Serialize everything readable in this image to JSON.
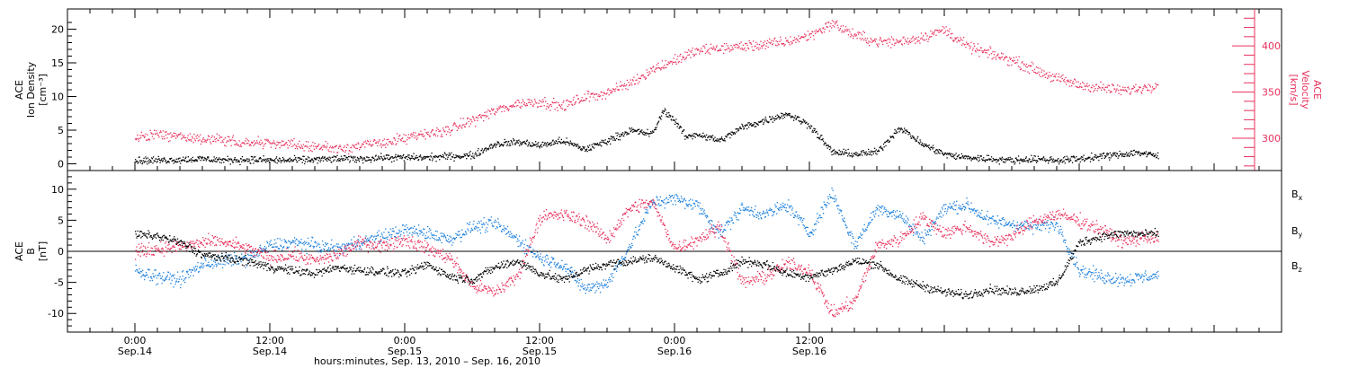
{
  "colors": {
    "density": "#000000",
    "velocity": "#e8305c",
    "bx": "#000000",
    "by": "#1a7fdc",
    "bz": "#e8305c"
  },
  "chart_data": [
    {
      "type": "scatter",
      "panel": "top",
      "ylabel_lines": [
        "ACE",
        "Ion Density",
        "[cm⁻³]"
      ],
      "ylim": [
        -1,
        23
      ],
      "yticks": [
        0,
        5,
        10,
        15,
        20
      ],
      "ylabel2_lines": [
        "ACE",
        "Velocity",
        "[km/s]"
      ],
      "y2lim": [
        265,
        440
      ],
      "y2ticks": [
        300,
        350,
        400
      ],
      "y2ticks_labels": [
        "300",
        "350",
        "400"
      ],
      "series": [
        {
          "name": "",
          "axis": "left",
          "color_key": "density",
          "x_hours": [
            0,
            2,
            4,
            6,
            8,
            10,
            12,
            14,
            16,
            18,
            20,
            22,
            24,
            26,
            28,
            30,
            32,
            34,
            34.5,
            36,
            38,
            40,
            42,
            44,
            46,
            47,
            48,
            49,
            50,
            52,
            54,
            56,
            58,
            60,
            62,
            64,
            66,
            68,
            70,
            72,
            73,
            74,
            76,
            78,
            80,
            82,
            84,
            86,
            88,
            89,
            90,
            91
          ],
          "y": [
            0.6,
            0.6,
            0.7,
            0.8,
            0.6,
            0.7,
            0.6,
            0.6,
            0.7,
            0.8,
            0.8,
            1.0,
            1.0,
            1.0,
            1.2,
            1.3,
            3.0,
            3.3,
            3.2,
            2.8,
            3.5,
            2.2,
            3.5,
            5.0,
            4.5,
            8.0,
            6.5,
            4.0,
            4.5,
            3.5,
            5.5,
            6.5,
            7.5,
            5.8,
            1.8,
            1.5,
            1.8,
            5.5,
            3.0,
            1.5,
            1.2,
            1.0,
            0.8,
            0.6,
            0.8,
            0.6,
            0.8,
            1.2,
            1.5,
            1.8,
            1.5,
            1.2
          ]
        },
        {
          "name": "",
          "axis": "right",
          "color_key": "velocity",
          "x_hours": [
            0,
            2,
            4,
            6,
            8,
            10,
            12,
            14,
            16,
            18,
            20,
            22,
            24,
            26,
            28,
            30,
            32,
            34,
            36,
            38,
            40,
            42,
            44,
            46,
            48,
            50,
            52,
            54,
            56,
            58,
            60,
            62,
            64,
            66,
            68,
            70,
            72,
            74,
            76,
            78,
            80,
            82,
            84,
            86,
            88,
            90,
            91
          ],
          "y": [
            300,
            305,
            302,
            300,
            298,
            296,
            295,
            293,
            292,
            290,
            292,
            296,
            300,
            305,
            310,
            320,
            330,
            338,
            340,
            335,
            345,
            350,
            360,
            375,
            385,
            395,
            398,
            400,
            402,
            405,
            412,
            425,
            412,
            405,
            405,
            410,
            418,
            400,
            392,
            385,
            375,
            365,
            358,
            355,
            352,
            356,
            360
          ]
        }
      ]
    },
    {
      "type": "scatter",
      "panel": "bottom",
      "ylabel_lines": [
        "ACE",
        "B",
        "[nT]"
      ],
      "ylim": [
        -13,
        13
      ],
      "yticks": [
        -10,
        -5,
        0,
        5,
        10
      ],
      "series": [
        {
          "name": "Bx",
          "color_key": "bx",
          "x_hours": [
            0,
            2,
            4,
            6,
            8,
            10,
            12,
            14,
            16,
            18,
            20,
            22,
            24,
            26,
            28,
            30,
            32,
            34,
            36,
            38,
            40,
            42,
            44,
            46,
            48,
            50,
            52,
            54,
            56,
            58,
            60,
            62,
            64,
            66,
            68,
            70,
            72,
            74,
            76,
            78,
            80,
            82,
            84,
            86,
            88,
            90,
            91
          ],
          "y": [
            2.8,
            2.5,
            1.5,
            -0.5,
            -1.0,
            -1.5,
            -2.5,
            -3.0,
            -3.5,
            -2.5,
            -3.0,
            -3.2,
            -3.5,
            -2.0,
            -4.0,
            -4.5,
            -2.5,
            -1.5,
            -3.5,
            -4.5,
            -3.0,
            -2.0,
            -1.5,
            -1.0,
            -2.5,
            -4.5,
            -3.5,
            -1.5,
            -2.0,
            -3.5,
            -4.0,
            -3.0,
            -1.5,
            -2.0,
            -4.5,
            -5.5,
            -6.5,
            -7.0,
            -6.0,
            -6.5,
            -6.0,
            -5.0,
            1.5,
            2.5,
            3.0,
            2.8,
            3.0
          ]
        },
        {
          "name": "By",
          "color_key": "by",
          "x_hours": [
            0,
            2,
            4,
            6,
            8,
            10,
            12,
            14,
            16,
            18,
            20,
            22,
            24,
            26,
            28,
            30,
            32,
            34,
            36,
            38,
            40,
            42,
            44,
            46,
            48,
            50,
            52,
            54,
            56,
            58,
            60,
            62,
            64,
            66,
            68,
            70,
            72,
            74,
            76,
            78,
            80,
            82,
            84,
            86,
            88,
            90,
            91
          ],
          "y": [
            -3.0,
            -4.0,
            -4.5,
            -2.0,
            -1.5,
            -1.0,
            1.0,
            1.5,
            1.0,
            0.5,
            1.5,
            2.5,
            3.5,
            3.0,
            2.0,
            4.0,
            4.5,
            2.0,
            -1.0,
            -2.0,
            -6.0,
            -5.0,
            1.0,
            8.0,
            8.5,
            7.5,
            3.0,
            7.0,
            6.0,
            7.5,
            3.0,
            9.5,
            1.0,
            7.0,
            6.0,
            2.0,
            7.0,
            7.5,
            5.0,
            4.5,
            4.0,
            4.5,
            -3.0,
            -4.0,
            -4.5,
            -4.0,
            -3.8
          ]
        },
        {
          "name": "Bz",
          "color_key": "bz",
          "x_hours": [
            0,
            2,
            4,
            6,
            8,
            10,
            12,
            14,
            16,
            18,
            20,
            22,
            24,
            26,
            28,
            30,
            32,
            34,
            36,
            38,
            40,
            42,
            44,
            46,
            48,
            50,
            52,
            54,
            56,
            58,
            60,
            62,
            64,
            66,
            68,
            70,
            72,
            74,
            76,
            78,
            80,
            82,
            84,
            86,
            88,
            90,
            91
          ],
          "y": [
            0.0,
            0.5,
            0.8,
            1.5,
            1.5,
            0.5,
            -1.0,
            -0.5,
            -1.5,
            -0.5,
            1.5,
            1.0,
            2.0,
            0.5,
            -1.0,
            -5.5,
            -6.5,
            -4.0,
            5.5,
            6.0,
            5.0,
            2.0,
            7.0,
            8.0,
            0.5,
            2.0,
            4.0,
            -5.0,
            -4.0,
            -2.0,
            -3.0,
            -10.0,
            -8.0,
            1.0,
            2.0,
            5.5,
            3.0,
            4.0,
            1.5,
            2.5,
            5.0,
            6.0,
            5.0,
            3.5,
            1.5,
            2.5,
            2.0
          ]
        }
      ]
    }
  ],
  "legend": {
    "bx_base": "B",
    "bx_sub": "x",
    "by_base": "B",
    "by_sub": "y",
    "bz_base": "B",
    "bz_sub": "z"
  },
  "time_axis": {
    "xlim_hours": [
      -6,
      102
    ],
    "major_ticks": [
      {
        "hour": 0,
        "time": "0:00",
        "date": "Sep.14"
      },
      {
        "hour": 12,
        "time": "12:00",
        "date": "Sep.14"
      },
      {
        "hour": 24,
        "time": "0:00",
        "date": "Sep.15"
      },
      {
        "hour": 36,
        "time": "12:00",
        "date": "Sep.15"
      },
      {
        "hour": 48,
        "time": "0:00",
        "date": "Sep.16"
      },
      {
        "hour": 60,
        "time": "12:00",
        "date": "Sep.16"
      }
    ],
    "xlabel": "hours:minutes, Sep. 13, 2010 – Sep. 16, 2010"
  }
}
